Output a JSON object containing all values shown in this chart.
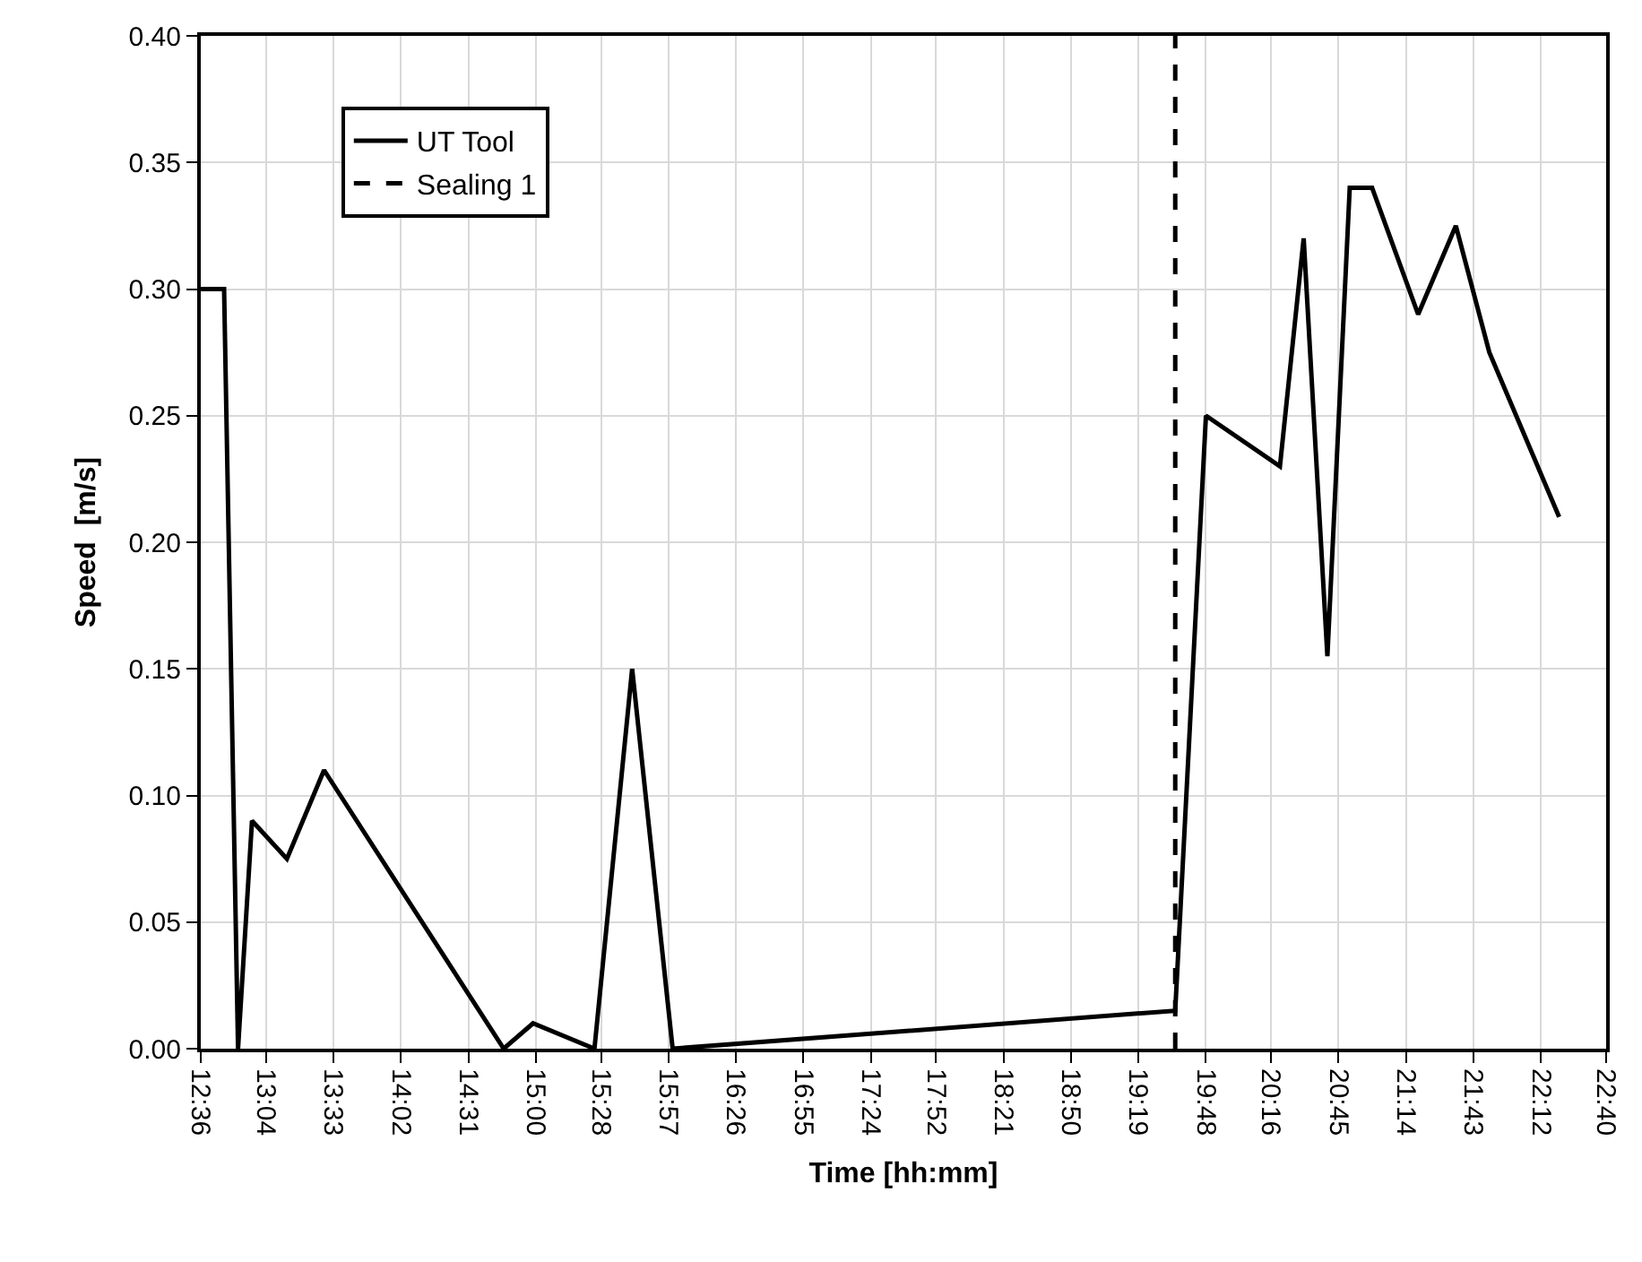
{
  "chart_data": {
    "type": "line",
    "xlabel": "Time [hh:mm]",
    "ylabel": "Speed  [m/s]",
    "x": [
      12.6,
      12.767,
      12.867,
      12.967,
      13.217,
      13.483,
      14.77,
      14.98,
      15.42,
      15.69,
      15.98,
      19.58,
      19.8,
      20.33,
      20.5,
      20.67,
      20.83,
      20.99,
      21.32,
      21.59,
      21.83,
      22.33
    ],
    "series": [
      {
        "name": "UT Tool",
        "color": "#000000",
        "values": [
          0.3,
          0.3,
          0.0,
          0.09,
          0.075,
          0.11,
          0.0,
          0.01,
          0.0,
          0.15,
          0.0,
          0.015,
          0.25,
          0.23,
          0.32,
          0.155,
          0.34,
          0.34,
          0.29,
          0.325,
          0.275,
          0.21
        ]
      },
      {
        "name": "Sealing 1",
        "color": "#000000",
        "x": [
          19.58,
          19.58
        ],
        "values": [
          0,
          0.4
        ],
        "line_style": "dashed"
      }
    ],
    "xticks": [
      {
        "value": 12.6,
        "label": "12:36"
      },
      {
        "value": 13.0667,
        "label": "13:04"
      },
      {
        "value": 13.55,
        "label": "13:33"
      },
      {
        "value": 14.0333,
        "label": "14:02"
      },
      {
        "value": 14.5167,
        "label": "14:31"
      },
      {
        "value": 15,
        "label": "15:00"
      },
      {
        "value": 15.4667,
        "label": "15:28"
      },
      {
        "value": 15.95,
        "label": "15:57"
      },
      {
        "value": 16.4333,
        "label": "16:26"
      },
      {
        "value": 16.9167,
        "label": "16:55"
      },
      {
        "value": 17.4,
        "label": "17:24"
      },
      {
        "value": 17.8667,
        "label": "17:52"
      },
      {
        "value": 18.35,
        "label": "18:21"
      },
      {
        "value": 18.8333,
        "label": "18:50"
      },
      {
        "value": 19.3167,
        "label": "19:19"
      },
      {
        "value": 19.8,
        "label": "19:48"
      },
      {
        "value": 20.2667,
        "label": "20:16"
      },
      {
        "value": 20.75,
        "label": "20:45"
      },
      {
        "value": 21.2333,
        "label": "21:14"
      },
      {
        "value": 21.7167,
        "label": "21:43"
      },
      {
        "value": 22.2,
        "label": "22:12"
      },
      {
        "value": 22.6667,
        "label": "22:40"
      }
    ],
    "xlim": [
      12.6,
      22.6667
    ],
    "ylim": [
      0,
      0.4
    ],
    "yticks": [
      {
        "value": 0,
        "label": "0.00"
      },
      {
        "value": 0.05,
        "label": "0.05"
      },
      {
        "value": 0.1,
        "label": "0.10"
      },
      {
        "value": 0.15,
        "label": "0.15"
      },
      {
        "value": 0.2,
        "label": "0.20"
      },
      {
        "value": 0.25,
        "label": "0.25"
      },
      {
        "value": 0.3,
        "label": "0.30"
      },
      {
        "value": 0.35,
        "label": "0.35"
      },
      {
        "value": 0.4,
        "label": "0.40"
      }
    ],
    "grid": true,
    "legend": "top left",
    "marker": "none",
    "line_style": "solid"
  }
}
